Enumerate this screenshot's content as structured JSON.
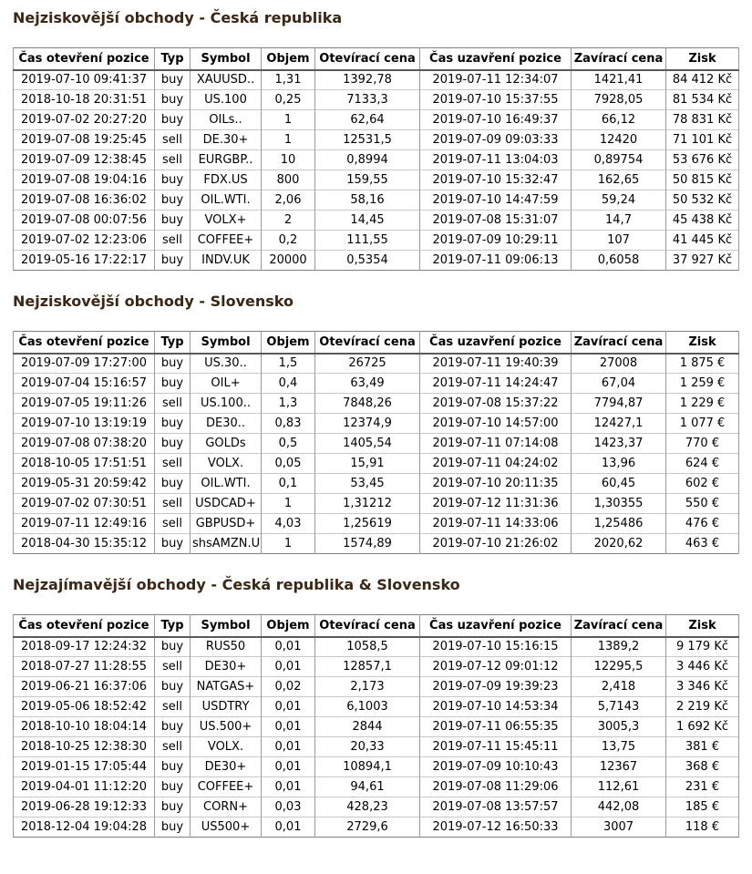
{
  "theme": {
    "heading_color": "#3b2716",
    "text_color": "#000000",
    "outer_border": "#808080",
    "grid_line": "#999999",
    "row_line": "#c9c9c9",
    "header_rule": "#5a5a5a",
    "page_bg": "#ffffff"
  },
  "sections": [
    {
      "title": "Nejziskovější obchody - Česká republika",
      "columns": [
        "Čas otevření pozice",
        "Typ",
        "Symbol",
        "Objem",
        "Otevírací cena",
        "Čas uzavření pozice",
        "Zavírací cena",
        "Zisk"
      ],
      "rows": [
        [
          "2019-07-10 09:41:37",
          "buy",
          "XAUUSD..",
          "1,31",
          "1392,78",
          "2019-07-11 12:34:07",
          "1421,41",
          "84 412 Kč"
        ],
        [
          "2018-10-18 20:31:51",
          "buy",
          "US.100",
          "0,25",
          "7133,3",
          "2019-07-10 15:37:55",
          "7928,05",
          "81 534 Kč"
        ],
        [
          "2019-07-02 20:27:20",
          "buy",
          "OILs..",
          "1",
          "62,64",
          "2019-07-10 16:49:37",
          "66,12",
          "78 831 Kč"
        ],
        [
          "2019-07-08 19:25:45",
          "sell",
          "DE.30+",
          "1",
          "12531,5",
          "2019-07-09 09:03:33",
          "12420",
          "71 101 Kč"
        ],
        [
          "2019-07-09 12:38:45",
          "sell",
          "EURGBP..",
          "10",
          "0,8994",
          "2019-07-11 13:04:03",
          "0,89754",
          "53 676 Kč"
        ],
        [
          "2019-07-08 19:04:16",
          "buy",
          "FDX.US",
          "800",
          "159,55",
          "2019-07-10 15:32:47",
          "162,65",
          "50 815 Kč"
        ],
        [
          "2019-07-08 16:36:02",
          "buy",
          "OIL.WTI.",
          "2,06",
          "58,16",
          "2019-07-10 14:47:59",
          "59,24",
          "50 532 Kč"
        ],
        [
          "2019-07-08 00:07:56",
          "buy",
          "VOLX+",
          "2",
          "14,45",
          "2019-07-08 15:31:07",
          "14,7",
          "45 438 Kč"
        ],
        [
          "2019-07-02 12:23:06",
          "sell",
          "COFFEE+",
          "0,2",
          "111,55",
          "2019-07-09 10:29:11",
          "107",
          "41 445 Kč"
        ],
        [
          "2019-05-16 17:22:17",
          "buy",
          "INDV.UK",
          "20000",
          "0,5354",
          "2019-07-11 09:06:13",
          "0,6058",
          "37 927 Kč"
        ]
      ]
    },
    {
      "title": "Nejziskovější obchody - Slovensko",
      "columns": [
        "Čas otevření pozice",
        "Typ",
        "Symbol",
        "Objem",
        "Otevírací cena",
        "Čas uzavření pozice",
        "Zavírací cena",
        "Zisk"
      ],
      "rows": [
        [
          "2019-07-09 17:27:00",
          "buy",
          "US.30..",
          "1,5",
          "26725",
          "2019-07-11 19:40:39",
          "27008",
          "1 875 €"
        ],
        [
          "2019-07-04 15:16:57",
          "buy",
          "OIL+",
          "0,4",
          "63,49",
          "2019-07-11 14:24:47",
          "67,04",
          "1 259 €"
        ],
        [
          "2019-07-05 19:11:26",
          "sell",
          "US.100..",
          "1,3",
          "7848,26",
          "2019-07-08 15:37:22",
          "7794,87",
          "1 229 €"
        ],
        [
          "2019-07-10 13:19:19",
          "buy",
          "DE30..",
          "0,83",
          "12374,9",
          "2019-07-10 14:57:00",
          "12427,1",
          "1 077 €"
        ],
        [
          "2019-07-08 07:38:20",
          "buy",
          "GOLDs",
          "0,5",
          "1405,54",
          "2019-07-11 07:14:08",
          "1423,37",
          "770 €"
        ],
        [
          "2018-10-05 17:51:51",
          "sell",
          "VOLX.",
          "0,05",
          "15,91",
          "2019-07-11 04:24:02",
          "13,96",
          "624 €"
        ],
        [
          "2019-05-31 20:59:42",
          "buy",
          "OIL.WTI.",
          "0,1",
          "53,45",
          "2019-07-10 20:11:35",
          "60,45",
          "602 €"
        ],
        [
          "2019-07-02 07:30:51",
          "sell",
          "USDCAD+",
          "1",
          "1,31212",
          "2019-07-12 11:31:36",
          "1,30355",
          "550 €"
        ],
        [
          "2019-07-11 12:49:16",
          "sell",
          "GBPUSD+",
          "4,03",
          "1,25619",
          "2019-07-11 14:33:06",
          "1,25486",
          "476 €"
        ],
        [
          "2018-04-30 15:35:12",
          "buy",
          "shsAMZN.US",
          "1",
          "1574,89",
          "2019-07-10 21:26:02",
          "2020,62",
          "463 €"
        ]
      ]
    },
    {
      "title": "Nejzajímavější obchody - Česká republika & Slovensko",
      "columns": [
        "Čas otevření pozice",
        "Typ",
        "Symbol",
        "Objem",
        "Otevírací cena",
        "Čas uzavření pozice",
        "Zavírací cena",
        "Zisk"
      ],
      "rows": [
        [
          "2018-09-17 12:24:32",
          "buy",
          "RUS50",
          "0,01",
          "1058,5",
          "2019-07-10 15:16:15",
          "1389,2",
          "9 179 Kč"
        ],
        [
          "2018-07-27 11:28:55",
          "sell",
          "DE30+",
          "0,01",
          "12857,1",
          "2019-07-12 09:01:12",
          "12295,5",
          "3 446 Kč"
        ],
        [
          "2019-06-21 16:37:06",
          "buy",
          "NATGAS+",
          "0,02",
          "2,173",
          "2019-07-09 19:39:23",
          "2,418",
          "3 346 Kč"
        ],
        [
          "2019-05-06 18:52:42",
          "sell",
          "USDTRY",
          "0,01",
          "6,1003",
          "2019-07-10 14:53:34",
          "5,7143",
          "2 219 Kč"
        ],
        [
          "2018-10-10 18:04:14",
          "buy",
          "US.500+",
          "0,01",
          "2844",
          "2019-07-11 06:55:35",
          "3005,3",
          "1 692 Kč"
        ],
        [
          "2018-10-25 12:38:30",
          "sell",
          "VOLX.",
          "0,01",
          "20,33",
          "2019-07-11 15:45:11",
          "13,75",
          "381 €"
        ],
        [
          "2019-01-15 17:05:44",
          "buy",
          "DE30+",
          "0,01",
          "10894,1",
          "2019-07-09 10:10:43",
          "12367",
          "368 €"
        ],
        [
          "2019-04-01 11:12:20",
          "buy",
          "COFFEE+",
          "0,01",
          "94,61",
          "2019-07-08 11:29:06",
          "112,61",
          "231 €"
        ],
        [
          "2019-06-28 19:12:33",
          "buy",
          "CORN+",
          "0,03",
          "428,23",
          "2019-07-08 13:57:57",
          "442,08",
          "185 €"
        ],
        [
          "2018-12-04 19:04:28",
          "buy",
          "US500+",
          "0,01",
          "2729,6",
          "2019-07-12 16:50:33",
          "3007",
          "118 €"
        ]
      ]
    }
  ]
}
